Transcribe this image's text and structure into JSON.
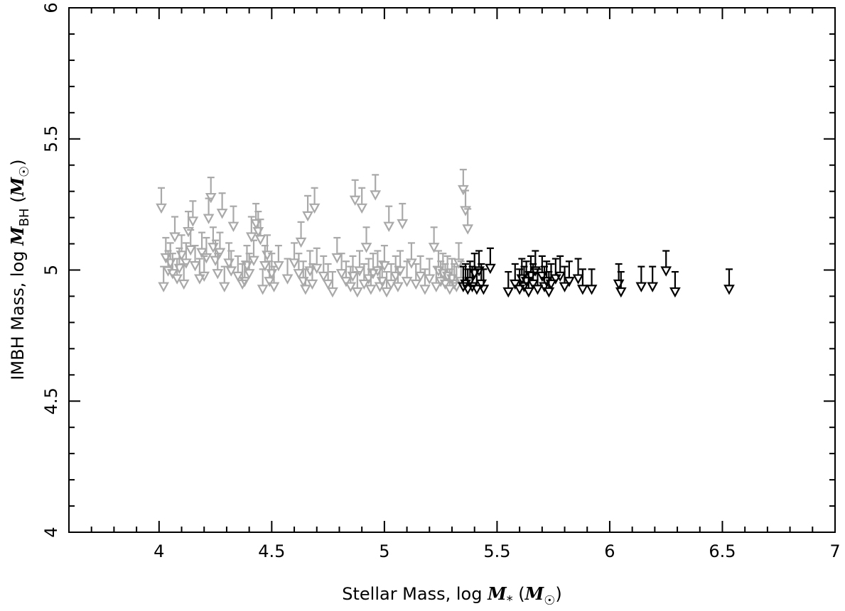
{
  "chart_data": {
    "type": "scatter",
    "title": "",
    "xlabel": {
      "prefix": "Stellar Mass, log ",
      "symbol": "M",
      "subscript": "*",
      "unit_open": " (",
      "unit_symbol": "M",
      "unit_subscript": "☉",
      "unit_close": ")"
    },
    "ylabel": {
      "prefix": "IMBH Mass, log ",
      "symbol": "M",
      "subscript": "BH",
      "unit_open": " (",
      "unit_symbol": "M",
      "unit_subscript": "☉",
      "unit_close": ")"
    },
    "xlim": [
      3.6,
      7.0
    ],
    "ylim": [
      4.0,
      6.0
    ],
    "x_ticks": [
      "4",
      "4.5",
      "5",
      "5.5",
      "6",
      "6.5",
      "7"
    ],
    "y_ticks": [
      "4",
      "4.5",
      "5",
      "5.5",
      "6"
    ],
    "grid": false,
    "marker": "upper-limit-arrow",
    "series": [
      {
        "color": "#a9a9a9",
        "points": [
          [
            4.01,
            5.24
          ],
          [
            4.02,
            4.94
          ],
          [
            4.03,
            5.05
          ],
          [
            4.04,
            5.0
          ],
          [
            4.05,
            5.03
          ],
          [
            4.06,
            4.99
          ],
          [
            4.07,
            5.13
          ],
          [
            4.08,
            4.97
          ],
          [
            4.09,
            5.01
          ],
          [
            4.1,
            5.06
          ],
          [
            4.11,
            4.95
          ],
          [
            4.12,
            5.03
          ],
          [
            4.13,
            5.15
          ],
          [
            4.14,
            5.08
          ],
          [
            4.15,
            5.19
          ],
          [
            4.16,
            5.02
          ],
          [
            4.18,
            4.97
          ],
          [
            4.19,
            5.07
          ],
          [
            4.2,
            4.98
          ],
          [
            4.21,
            5.05
          ],
          [
            4.22,
            5.2
          ],
          [
            4.23,
            5.28
          ],
          [
            4.24,
            5.09
          ],
          [
            4.25,
            5.04
          ],
          [
            4.26,
            4.99
          ],
          [
            4.27,
            5.07
          ],
          [
            4.28,
            5.22
          ],
          [
            4.29,
            4.94
          ],
          [
            4.31,
            5.03
          ],
          [
            4.32,
            5.0
          ],
          [
            4.33,
            5.17
          ],
          [
            4.35,
            4.98
          ],
          [
            4.37,
            4.95
          ],
          [
            4.38,
            4.96
          ],
          [
            4.39,
            5.02
          ],
          [
            4.4,
            4.99
          ],
          [
            4.41,
            5.13
          ],
          [
            4.42,
            5.04
          ],
          [
            4.43,
            5.18
          ],
          [
            4.44,
            5.15
          ],
          [
            4.45,
            5.12
          ],
          [
            4.46,
            4.93
          ],
          [
            4.47,
            5.02
          ],
          [
            4.48,
            5.06
          ],
          [
            4.49,
            4.96
          ],
          [
            4.5,
            4.99
          ],
          [
            4.51,
            4.94
          ],
          [
            4.53,
            5.02
          ],
          [
            4.57,
            4.97
          ],
          [
            4.6,
            5.03
          ],
          [
            4.62,
            4.99
          ],
          [
            4.63,
            5.11
          ],
          [
            4.64,
            4.96
          ],
          [
            4.65,
            4.93
          ],
          [
            4.66,
            5.21
          ],
          [
            4.67,
            5.0
          ],
          [
            4.68,
            4.95
          ],
          [
            4.69,
            5.24
          ],
          [
            4.7,
            5.01
          ],
          [
            4.73,
            4.98
          ],
          [
            4.75,
            4.95
          ],
          [
            4.77,
            4.92
          ],
          [
            4.79,
            5.05
          ],
          [
            4.81,
            4.99
          ],
          [
            4.83,
            4.96
          ],
          [
            4.85,
            4.94
          ],
          [
            4.86,
            4.98
          ],
          [
            4.87,
            5.27
          ],
          [
            4.88,
            4.92
          ],
          [
            4.89,
            5.0
          ],
          [
            4.9,
            5.24
          ],
          [
            4.91,
            4.95
          ],
          [
            4.92,
            5.09
          ],
          [
            4.93,
            4.97
          ],
          [
            4.94,
            4.93
          ],
          [
            4.95,
            4.99
          ],
          [
            4.96,
            5.29
          ],
          [
            4.97,
            5.0
          ],
          [
            4.98,
            4.94
          ],
          [
            4.99,
            4.96
          ],
          [
            5.0,
            5.02
          ],
          [
            5.01,
            4.92
          ],
          [
            5.02,
            5.17
          ],
          [
            5.03,
            4.95
          ],
          [
            5.05,
            4.98
          ],
          [
            5.06,
            4.94
          ],
          [
            5.07,
            5.0
          ],
          [
            5.08,
            5.18
          ],
          [
            5.1,
            4.96
          ],
          [
            5.12,
            5.03
          ],
          [
            5.14,
            4.95
          ],
          [
            5.16,
            4.98
          ],
          [
            5.18,
            4.93
          ],
          [
            5.2,
            4.97
          ],
          [
            5.22,
            5.09
          ],
          [
            5.23,
            4.94
          ],
          [
            5.24,
            5.0
          ],
          [
            5.25,
            4.96
          ],
          [
            5.26,
            4.99
          ],
          [
            5.27,
            4.95
          ],
          [
            5.28,
            4.98
          ],
          [
            5.29,
            4.93
          ],
          [
            5.3,
            4.97
          ],
          [
            5.31,
            4.95
          ],
          [
            5.32,
            4.94
          ],
          [
            5.33,
            5.03
          ],
          [
            5.34,
            4.96
          ],
          [
            5.35,
            5.31
          ],
          [
            5.36,
            5.23
          ],
          [
            5.37,
            5.16
          ]
        ]
      },
      {
        "color": "#000000",
        "points": [
          [
            5.35,
            4.94
          ],
          [
            5.36,
            4.95
          ],
          [
            5.37,
            4.93
          ],
          [
            5.38,
            4.96
          ],
          [
            5.39,
            4.94
          ],
          [
            5.4,
            4.99
          ],
          [
            5.41,
            4.93
          ],
          [
            5.42,
            5.0
          ],
          [
            5.43,
            4.95
          ],
          [
            5.44,
            4.93
          ],
          [
            5.47,
            5.01
          ],
          [
            5.55,
            4.92
          ],
          [
            5.58,
            4.95
          ],
          [
            5.6,
            4.93
          ],
          [
            5.61,
            4.97
          ],
          [
            5.62,
            4.94
          ],
          [
            5.63,
            4.96
          ],
          [
            5.64,
            4.92
          ],
          [
            5.65,
            4.98
          ],
          [
            5.66,
            4.95
          ],
          [
            5.67,
            5.0
          ],
          [
            5.68,
            4.93
          ],
          [
            5.7,
            4.98
          ],
          [
            5.71,
            4.94
          ],
          [
            5.72,
            4.96
          ],
          [
            5.73,
            4.92
          ],
          [
            5.74,
            4.95
          ],
          [
            5.76,
            4.97
          ],
          [
            5.78,
            4.98
          ],
          [
            5.8,
            4.94
          ],
          [
            5.82,
            4.96
          ],
          [
            5.86,
            4.97
          ],
          [
            5.88,
            4.93
          ],
          [
            5.92,
            4.93
          ],
          [
            6.04,
            4.95
          ],
          [
            6.05,
            4.92
          ],
          [
            6.14,
            4.94
          ],
          [
            6.19,
            4.94
          ],
          [
            6.25,
            5.0
          ],
          [
            6.29,
            4.92
          ],
          [
            6.53,
            4.93
          ]
        ]
      }
    ]
  }
}
